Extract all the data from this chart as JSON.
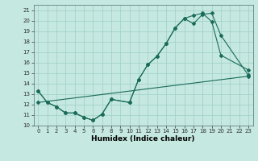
{
  "xlabel": "Humidex (Indice chaleur)",
  "bg_color": "#c5e8e0",
  "grid_color": "#9ecfc5",
  "line_color": "#1a6b5a",
  "xlim": [
    -0.5,
    23.5
  ],
  "ylim": [
    10,
    21.5
  ],
  "xticks": [
    0,
    1,
    2,
    3,
    4,
    5,
    6,
    7,
    8,
    9,
    10,
    11,
    12,
    13,
    14,
    15,
    16,
    17,
    18,
    19,
    20,
    21,
    22,
    23
  ],
  "yticks": [
    10,
    11,
    12,
    13,
    14,
    15,
    16,
    17,
    18,
    19,
    20,
    21
  ],
  "line1_x": [
    0,
    1,
    2,
    3,
    4,
    5,
    6,
    7,
    8,
    10,
    11,
    12,
    13,
    14,
    15,
    16,
    17,
    18,
    19,
    20,
    23
  ],
  "line1_y": [
    13.3,
    12.2,
    11.8,
    11.2,
    11.2,
    10.8,
    10.5,
    11.1,
    12.5,
    12.2,
    14.4,
    15.8,
    16.6,
    17.8,
    19.3,
    20.2,
    19.7,
    20.6,
    20.7,
    18.6,
    14.8
  ],
  "line2_x": [
    0,
    1,
    2,
    3,
    4,
    5,
    6,
    7,
    8,
    10,
    11,
    12,
    13,
    14,
    15,
    16,
    17,
    18,
    19,
    20,
    23
  ],
  "line2_y": [
    13.3,
    12.2,
    11.8,
    11.2,
    11.2,
    10.8,
    10.5,
    11.1,
    12.5,
    12.2,
    14.4,
    15.8,
    16.6,
    17.8,
    19.3,
    20.2,
    20.5,
    20.7,
    19.9,
    16.7,
    15.3
  ],
  "line3_x": [
    0,
    23
  ],
  "line3_y": [
    12.2,
    14.7
  ],
  "xlabel_fontsize": 6.5,
  "tick_fontsize": 5.0
}
